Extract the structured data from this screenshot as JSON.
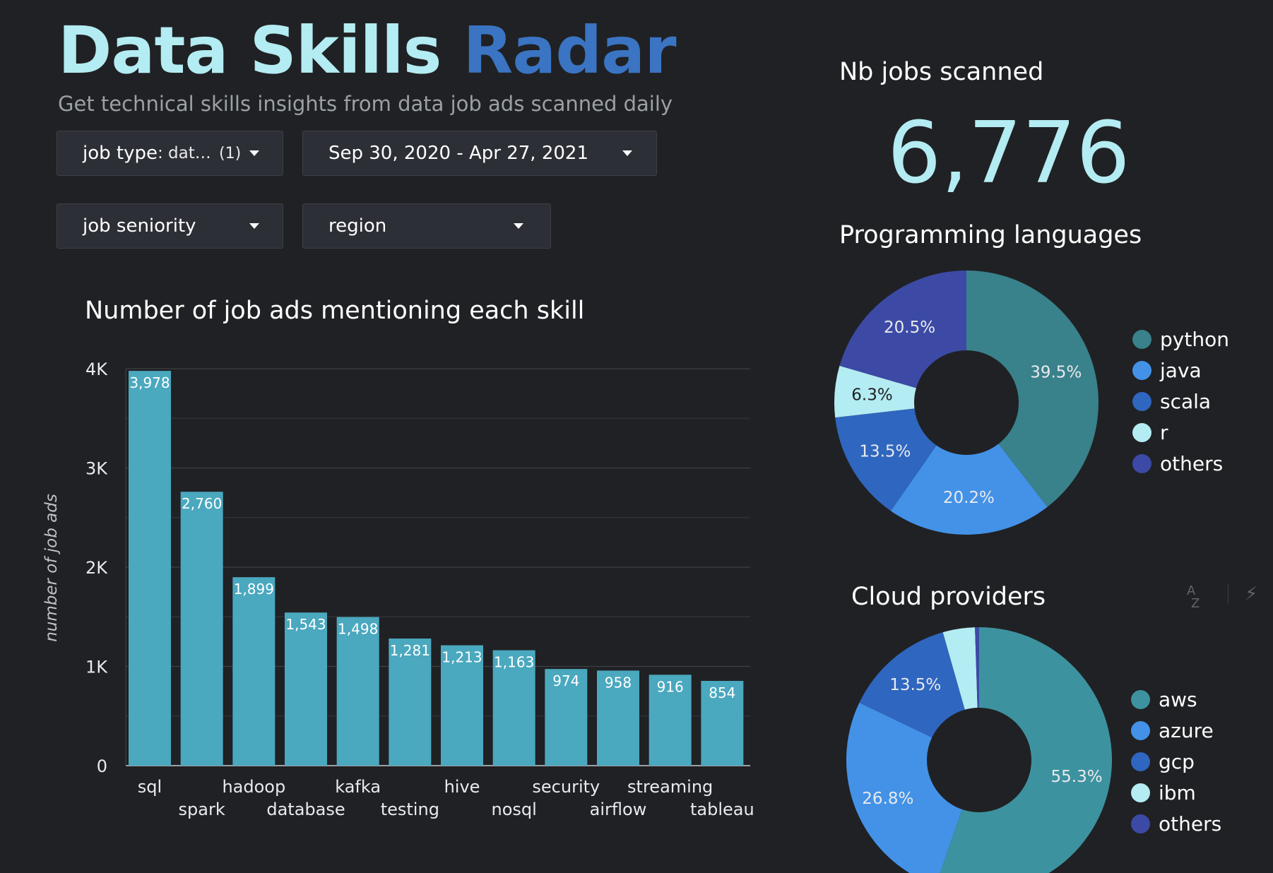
{
  "header": {
    "title_part1": "Data Skills",
    "title_part2": "Radar",
    "subtitle": "Get technical skills insights from data job ads scanned daily"
  },
  "filters": {
    "job_type_label": "job type",
    "job_type_value": ": dat…",
    "job_type_count": "(1)",
    "date_range": "Sep 30, 2020 - Apr 27, 2021",
    "seniority": "job seniority",
    "region": "region"
  },
  "kpi": {
    "label": "Nb jobs scanned",
    "value": "6,776"
  },
  "colors": {
    "title_light": "#b3ecf2",
    "title_accent": "#3a74c2",
    "bar": "#4aa8bf",
    "python": "#39818b",
    "java": "#4392e8",
    "scala": "#2f66bf",
    "r": "#b3ecf2",
    "others": "#3c4aa6",
    "aws": "#3d929f"
  },
  "toolbar_icons": [
    "sort-az-icon",
    "lightning-icon"
  ],
  "chart_data": [
    {
      "type": "bar",
      "title": "Number of job ads mentioning each skill",
      "xlabel": "",
      "ylabel": "number of job ads",
      "ylim": [
        0,
        4000
      ],
      "yticks": [
        0,
        1000,
        2000,
        3000,
        4000
      ],
      "ytick_labels": [
        "0",
        "1K",
        "2K",
        "3K",
        "4K"
      ],
      "grid": true,
      "categories": [
        "sql",
        "spark",
        "hadoop",
        "database",
        "kafka",
        "testing",
        "hive",
        "nosql",
        "security",
        "airflow",
        "streaming",
        "tableau"
      ],
      "values": [
        3978,
        2760,
        1899,
        1543,
        1498,
        1281,
        1213,
        1163,
        974,
        958,
        916,
        854
      ],
      "data_labels": [
        "3,978",
        "2,760",
        "1,899",
        "1,543",
        "1,498",
        "1,281",
        "1,213",
        "1,163",
        "974",
        "958",
        "916",
        "854"
      ]
    },
    {
      "type": "pie",
      "title": "Programming languages",
      "legend_position": "right",
      "labels": [
        "python",
        "java",
        "scala",
        "r",
        "others"
      ],
      "values": [
        39.5,
        20.2,
        13.5,
        6.3,
        20.5
      ],
      "data_labels": [
        "39.5%",
        "20.2%",
        "13.5%",
        "6.3%",
        "20.5%"
      ],
      "colors": [
        "#39818b",
        "#4392e8",
        "#2f66bf",
        "#b3ecf2",
        "#3c4aa6"
      ]
    },
    {
      "type": "pie",
      "title": "Cloud providers",
      "legend_position": "right",
      "labels": [
        "aws",
        "azure",
        "gcp",
        "ibm",
        "others"
      ],
      "values": [
        55.3,
        26.8,
        13.5,
        3.9,
        0.5
      ],
      "data_labels": [
        "55.3%",
        "26.8%",
        "13.5%",
        "",
        ""
      ],
      "colors": [
        "#3d929f",
        "#4392e8",
        "#2f66bf",
        "#b3ecf2",
        "#3c4aa6"
      ]
    }
  ]
}
